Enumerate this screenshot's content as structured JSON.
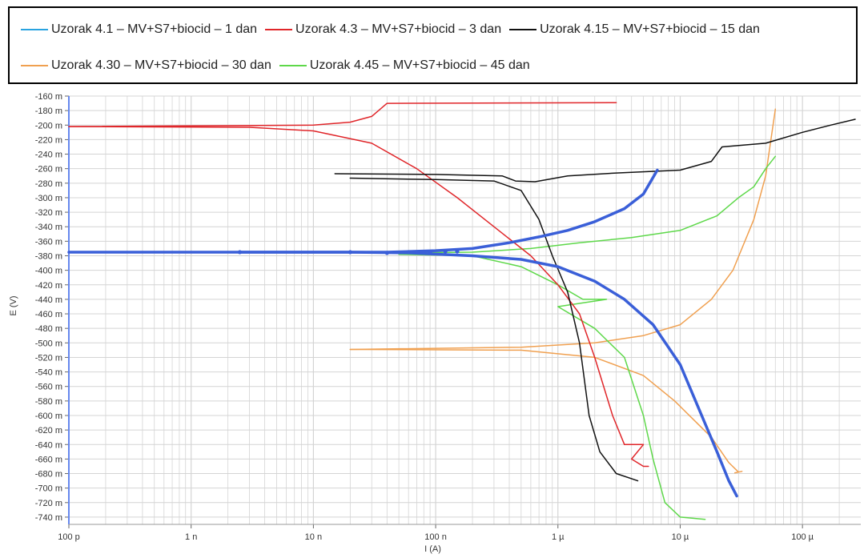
{
  "colors": {
    "s1": "#3a5fd8",
    "s1_legend": "#29a3e0",
    "s3": "#e0262a",
    "s15": "#111111",
    "s30": "#f0a050",
    "s45": "#5ed84a",
    "grid": "#d4d4d4",
    "axis": "#6688ee"
  },
  "chart_data": {
    "type": "line",
    "xlabel": "I (A)",
    "ylabel": "E (V)",
    "x_scale": "log",
    "x_range": [
      1e-10,
      0.0003
    ],
    "y_range": [
      -0.75,
      -0.16
    ],
    "xticks": [
      {
        "value": 1e-10,
        "label": "100 p"
      },
      {
        "value": 1e-09,
        "label": "1 n"
      },
      {
        "value": 1e-08,
        "label": "10 n"
      },
      {
        "value": 1e-07,
        "label": "100 n"
      },
      {
        "value": 1e-06,
        "label": "1 µ"
      },
      {
        "value": 1e-05,
        "label": "10 µ"
      },
      {
        "value": 0.0001,
        "label": "100 µ"
      }
    ],
    "yticks": [
      {
        "value": -0.16,
        "label": "-160 m"
      },
      {
        "value": -0.18,
        "label": "-180 m"
      },
      {
        "value": -0.2,
        "label": "-200 m"
      },
      {
        "value": -0.22,
        "label": "-220 m"
      },
      {
        "value": -0.24,
        "label": "-240 m"
      },
      {
        "value": -0.26,
        "label": "-260 m"
      },
      {
        "value": -0.28,
        "label": "-280 m"
      },
      {
        "value": -0.3,
        "label": "-300 m"
      },
      {
        "value": -0.32,
        "label": "-320 m"
      },
      {
        "value": -0.34,
        "label": "-340 m"
      },
      {
        "value": -0.36,
        "label": "-360 m"
      },
      {
        "value": -0.38,
        "label": "-380 m"
      },
      {
        "value": -0.4,
        "label": "-400 m"
      },
      {
        "value": -0.42,
        "label": "-420 m"
      },
      {
        "value": -0.44,
        "label": "-440 m"
      },
      {
        "value": -0.46,
        "label": "-460 m"
      },
      {
        "value": -0.48,
        "label": "-480 m"
      },
      {
        "value": -0.5,
        "label": "-500 m"
      },
      {
        "value": -0.52,
        "label": "-520 m"
      },
      {
        "value": -0.54,
        "label": "-540 m"
      },
      {
        "value": -0.56,
        "label": "-560 m"
      },
      {
        "value": -0.58,
        "label": "-580 m"
      },
      {
        "value": -0.6,
        "label": "-600 m"
      },
      {
        "value": -0.62,
        "label": "-620 m"
      },
      {
        "value": -0.64,
        "label": "-640 m"
      },
      {
        "value": -0.66,
        "label": "-660 m"
      },
      {
        "value": -0.68,
        "label": "-680 m"
      },
      {
        "value": -0.7,
        "label": "-700 m"
      },
      {
        "value": -0.72,
        "label": "-720 m"
      },
      {
        "value": -0.74,
        "label": "-740 m"
      }
    ],
    "grid": true,
    "legend_position": "top",
    "series": [
      {
        "name": "Uzorak 4.1 – MV+S7+biocid – 1 dan",
        "color_key": "s1",
        "legend_color_key": "s1_legend",
        "width": 3.5,
        "branches": [
          [
            [
              1e-10,
              -0.375
            ],
            [
              2.5e-09,
              -0.375
            ],
            [
              2e-08,
              -0.375
            ],
            [
              4e-08,
              -0.375
            ],
            [
              1e-07,
              -0.373
            ],
            [
              2e-07,
              -0.37
            ],
            [
              4e-07,
              -0.362
            ],
            [
              7e-07,
              -0.354
            ],
            [
              1.2e-06,
              -0.345
            ],
            [
              2e-06,
              -0.333
            ],
            [
              3.5e-06,
              -0.315
            ],
            [
              5e-06,
              -0.295
            ],
            [
              6.5e-06,
              -0.262
            ]
          ],
          [
            [
              2.5e-09,
              -0.375
            ],
            [
              2e-08,
              -0.375
            ],
            [
              6e-08,
              -0.376
            ],
            [
              2e-07,
              -0.38
            ],
            [
              5e-07,
              -0.385
            ],
            [
              1e-06,
              -0.395
            ],
            [
              2e-06,
              -0.415
            ],
            [
              3.5e-06,
              -0.44
            ],
            [
              6e-06,
              -0.475
            ],
            [
              1e-05,
              -0.53
            ],
            [
              1.5e-05,
              -0.6
            ],
            [
              2e-05,
              -0.65
            ],
            [
              2.5e-05,
              -0.69
            ],
            [
              2.9e-05,
              -0.711
            ]
          ]
        ]
      },
      {
        "name": "Uzorak 4.3 – MV+S7+biocid – 3 dan",
        "color_key": "s3",
        "width": 1.5,
        "branches": [
          [
            [
              1e-10,
              -0.202
            ],
            [
              1e-08,
              -0.2
            ],
            [
              2e-08,
              -0.196
            ],
            [
              3e-08,
              -0.188
            ],
            [
              4e-08,
              -0.17
            ],
            [
              3e-06,
              -0.169
            ]
          ],
          [
            [
              1e-10,
              -0.202
            ],
            [
              3e-09,
              -0.203
            ],
            [
              1e-08,
              -0.208
            ],
            [
              3e-08,
              -0.225
            ],
            [
              7e-08,
              -0.26
            ],
            [
              1.5e-07,
              -0.3
            ],
            [
              3e-07,
              -0.34
            ],
            [
              6e-07,
              -0.38
            ],
            [
              1e-06,
              -0.42
            ],
            [
              1.5e-06,
              -0.46
            ],
            [
              2e-06,
              -0.52
            ],
            [
              2.8e-06,
              -0.6
            ],
            [
              3.5e-06,
              -0.64
            ],
            [
              5e-06,
              -0.64
            ],
            [
              4e-06,
              -0.66
            ],
            [
              5e-06,
              -0.67
            ],
            [
              5.5e-06,
              -0.67
            ]
          ]
        ]
      },
      {
        "name": "Uzorak 4.15 – MV+S7+biocid – 15 dan",
        "color_key": "s15",
        "width": 1.5,
        "branches": [
          [
            [
              1.5e-08,
              -0.267
            ],
            [
              1e-07,
              -0.268
            ],
            [
              3.5e-07,
              -0.27
            ],
            [
              4.5e-07,
              -0.277
            ],
            [
              6.5e-07,
              -0.278
            ],
            [
              1.2e-06,
              -0.27
            ],
            [
              3e-06,
              -0.266
            ],
            [
              1e-05,
              -0.262
            ],
            [
              1.8e-05,
              -0.25
            ],
            [
              2.2e-05,
              -0.23
            ],
            [
              5e-05,
              -0.225
            ],
            [
              0.0001,
              -0.21
            ],
            [
              0.00017,
              -0.2
            ],
            [
              0.00027,
              -0.192
            ]
          ],
          [
            [
              2e-08,
              -0.273
            ],
            [
              1e-07,
              -0.275
            ],
            [
              3e-07,
              -0.277
            ],
            [
              5e-07,
              -0.29
            ],
            [
              7e-07,
              -0.33
            ],
            [
              9e-07,
              -0.38
            ],
            [
              1.2e-06,
              -0.43
            ],
            [
              1.5e-06,
              -0.5
            ],
            [
              1.8e-06,
              -0.6
            ],
            [
              2.2e-06,
              -0.65
            ],
            [
              3e-06,
              -0.68
            ],
            [
              4.5e-06,
              -0.69
            ]
          ]
        ]
      },
      {
        "name": "Uzorak 4.30 – MV+S7+biocid – 30 dan",
        "color_key": "s30",
        "width": 1.5,
        "branches": [
          [
            [
              2e-08,
              -0.509
            ],
            [
              5e-07,
              -0.506
            ],
            [
              2e-06,
              -0.5
            ],
            [
              5e-06,
              -0.49
            ],
            [
              1e-05,
              -0.475
            ],
            [
              1.8e-05,
              -0.44
            ],
            [
              2.7e-05,
              -0.4
            ],
            [
              4e-05,
              -0.33
            ],
            [
              5e-05,
              -0.27
            ],
            [
              6e-05,
              -0.178
            ]
          ],
          [
            [
              2e-08,
              -0.509
            ],
            [
              5e-07,
              -0.51
            ],
            [
              2e-06,
              -0.52
            ],
            [
              5e-06,
              -0.545
            ],
            [
              9e-06,
              -0.58
            ],
            [
              1.8e-05,
              -0.63
            ],
            [
              2.5e-05,
              -0.665
            ],
            [
              3e-05,
              -0.678
            ],
            [
              2.8e-05,
              -0.679
            ],
            [
              3.2e-05,
              -0.677
            ]
          ]
        ]
      },
      {
        "name": "Uzorak 4.45 – MV+S7+biocid – 45 dan",
        "color_key": "s45",
        "width": 1.5,
        "branches": [
          [
            [
              5e-08,
              -0.376
            ],
            [
              2e-07,
              -0.375
            ],
            [
              6e-07,
              -0.37
            ],
            [
              1.5e-06,
              -0.362
            ],
            [
              4e-06,
              -0.355
            ],
            [
              1e-05,
              -0.345
            ],
            [
              2e-05,
              -0.325
            ],
            [
              3e-05,
              -0.3
            ],
            [
              4e-05,
              -0.285
            ],
            [
              5e-05,
              -0.26
            ],
            [
              6e-05,
              -0.243
            ]
          ],
          [
            [
              5e-08,
              -0.378
            ],
            [
              2e-07,
              -0.38
            ],
            [
              5e-07,
              -0.395
            ],
            [
              1e-06,
              -0.42
            ],
            [
              1.6e-06,
              -0.44
            ],
            [
              2.5e-06,
              -0.44
            ],
            [
              1e-06,
              -0.45
            ],
            [
              2e-06,
              -0.48
            ],
            [
              3.5e-06,
              -0.52
            ],
            [
              5e-06,
              -0.6
            ],
            [
              6e-06,
              -0.66
            ],
            [
              7.5e-06,
              -0.72
            ],
            [
              1e-05,
              -0.74
            ],
            [
              1.6e-05,
              -0.743
            ]
          ]
        ]
      }
    ],
    "markers": {
      "series_color_key": "s1",
      "points": [
        [
          2.5e-09,
          -0.375
        ],
        [
          2e-08,
          -0.375
        ],
        [
          4e-08,
          -0.376
        ],
        [
          6e-08,
          -0.375
        ],
        [
          9e-08,
          -0.375
        ],
        [
          1.2e-07,
          -0.374
        ],
        [
          1.5e-07,
          -0.374
        ]
      ]
    }
  }
}
